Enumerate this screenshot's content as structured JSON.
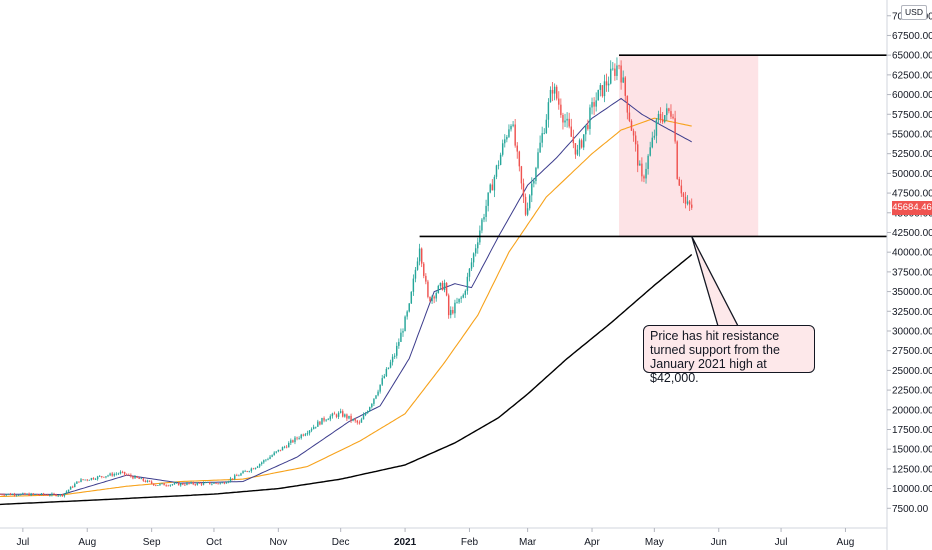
{
  "chart_data": {
    "type": "candlestick",
    "currency": "USD",
    "y_axis_ticks": [
      "7500.00",
      "10000.00",
      "12500.00",
      "15000.00",
      "17500.00",
      "20000.00",
      "22500.00",
      "25000.00",
      "27500.00",
      "30000.00",
      "32500.00",
      "35000.00",
      "37500.00",
      "40000.00",
      "42500.00",
      "45000.00",
      "47500.00",
      "50000.00",
      "52500.00",
      "55000.00",
      "57500.00",
      "60000.00",
      "62500.00",
      "65000.00",
      "67500.00",
      "70000.00"
    ],
    "y_tick_values": [
      7500,
      10000,
      12500,
      15000,
      17500,
      20000,
      22500,
      25000,
      27500,
      30000,
      32500,
      35000,
      37500,
      40000,
      42500,
      45000,
      47500,
      50000,
      52500,
      55000,
      57500,
      60000,
      62500,
      65000,
      67500,
      70000
    ],
    "ylim": [
      5000,
      72000
    ],
    "x_axis_ticks": [
      {
        "label": "Jul",
        "date": "2020-07-01",
        "bold": false
      },
      {
        "label": "Aug",
        "date": "2020-08-01",
        "bold": false
      },
      {
        "label": "Sep",
        "date": "2020-09-01",
        "bold": false
      },
      {
        "label": "Oct",
        "date": "2020-10-01",
        "bold": false
      },
      {
        "label": "Nov",
        "date": "2020-11-01",
        "bold": false
      },
      {
        "label": "Dec",
        "date": "2020-12-01",
        "bold": false
      },
      {
        "label": "2021",
        "date": "2021-01-01",
        "bold": true
      },
      {
        "label": "Feb",
        "date": "2021-02-01",
        "bold": false
      },
      {
        "label": "Mar",
        "date": "2021-03-01",
        "bold": false
      },
      {
        "label": "Apr",
        "date": "2021-04-01",
        "bold": false
      },
      {
        "label": "May",
        "date": "2021-05-01",
        "bold": false
      },
      {
        "label": "Jun",
        "date": "2021-06-01",
        "bold": false
      },
      {
        "label": "Jul",
        "date": "2021-07-01",
        "bold": false
      },
      {
        "label": "Aug",
        "date": "2021-08-01",
        "bold": false
      }
    ],
    "xlim": [
      "2020-06-20",
      "2021-08-21"
    ],
    "last_price": "45684.46",
    "price_keyframes": [
      [
        "2020-06-20",
        9300
      ],
      [
        "2020-07-20",
        9200
      ],
      [
        "2020-07-28",
        11000
      ],
      [
        "2020-08-17",
        12000
      ],
      [
        "2020-09-03",
        10500
      ],
      [
        "2020-10-05",
        10700
      ],
      [
        "2020-10-21",
        12800
      ],
      [
        "2020-11-05",
        15500
      ],
      [
        "2020-11-24",
        19000
      ],
      [
        "2020-12-01",
        19500
      ],
      [
        "2020-12-10",
        18200
      ],
      [
        "2020-12-16",
        21000
      ],
      [
        "2020-12-27",
        27000
      ],
      [
        "2021-01-03",
        33000
      ],
      [
        "2021-01-08",
        41000
      ],
      [
        "2021-01-12",
        34000
      ],
      [
        "2021-01-20",
        36000
      ],
      [
        "2021-01-22",
        32000
      ],
      [
        "2021-01-29",
        34500
      ],
      [
        "2021-02-08",
        45000
      ],
      [
        "2021-02-21",
        57000
      ],
      [
        "2021-02-28",
        45000
      ],
      [
        "2021-03-13",
        61000
      ],
      [
        "2021-03-25",
        52500
      ],
      [
        "2021-04-02",
        59000
      ],
      [
        "2021-04-14",
        64000
      ],
      [
        "2021-04-25",
        49000
      ],
      [
        "2021-05-03",
        57000
      ],
      [
        "2021-05-10",
        58000
      ],
      [
        "2021-05-12",
        50000
      ],
      [
        "2021-05-16",
        46000
      ],
      [
        "2021-05-19",
        45684
      ]
    ],
    "ma_fast_keyframes": [
      [
        "2020-06-20",
        9300
      ],
      [
        "2020-07-20",
        9250
      ],
      [
        "2020-08-20",
        11700
      ],
      [
        "2020-09-15",
        10700
      ],
      [
        "2020-10-15",
        10900
      ],
      [
        "2020-11-10",
        14000
      ],
      [
        "2020-12-05",
        18500
      ],
      [
        "2020-12-20",
        20500
      ],
      [
        "2021-01-03",
        26500
      ],
      [
        "2021-01-15",
        35000
      ],
      [
        "2021-01-25",
        36000
      ],
      [
        "2021-02-02",
        35500
      ],
      [
        "2021-02-15",
        42000
      ],
      [
        "2021-03-01",
        48500
      ],
      [
        "2021-03-15",
        52000
      ],
      [
        "2021-04-01",
        57000
      ],
      [
        "2021-04-15",
        59500
      ],
      [
        "2021-04-25",
        57500
      ],
      [
        "2021-05-05",
        56000
      ],
      [
        "2021-05-19",
        54000
      ]
    ],
    "ma_slow_keyframes": [
      [
        "2020-06-20",
        9000
      ],
      [
        "2020-07-20",
        9200
      ],
      [
        "2020-08-20",
        10300
      ],
      [
        "2020-09-15",
        10900
      ],
      [
        "2020-10-15",
        11200
      ],
      [
        "2020-11-15",
        12800
      ],
      [
        "2020-12-10",
        16000
      ],
      [
        "2021-01-01",
        19500
      ],
      [
        "2021-01-20",
        26000
      ],
      [
        "2021-02-05",
        32000
      ],
      [
        "2021-02-20",
        40000
      ],
      [
        "2021-03-10",
        47000
      ],
      [
        "2021-04-01",
        52500
      ],
      [
        "2021-04-15",
        55500
      ],
      [
        "2021-05-01",
        57000
      ],
      [
        "2021-05-19",
        56000
      ]
    ],
    "ma_200_keyframes": [
      [
        "2020-06-20",
        8000
      ],
      [
        "2020-08-01",
        8500
      ],
      [
        "2020-10-01",
        9300
      ],
      [
        "2020-11-01",
        10000
      ],
      [
        "2020-12-01",
        11200
      ],
      [
        "2021-01-01",
        13000
      ],
      [
        "2021-01-25",
        15800
      ],
      [
        "2021-02-15",
        19000
      ],
      [
        "2021-03-01",
        22000
      ],
      [
        "2021-03-20",
        26500
      ],
      [
        "2021-04-10",
        31000
      ],
      [
        "2021-05-01",
        35800
      ],
      [
        "2021-05-19",
        39700
      ]
    ],
    "horizontal_levels": [
      {
        "value": 65000,
        "from": "2021-04-14",
        "to": "2021-08-21"
      },
      {
        "value": 42000,
        "from": "2021-01-08",
        "to": "2021-08-21"
      }
    ],
    "highlight_zone": {
      "from": "2021-04-14",
      "to": "2021-06-20",
      "low": 42000,
      "high": 65000
    },
    "annotation": {
      "text": "Price has hit resistance turned support from the January 2021 high at $42,000.",
      "points_to": [
        "2021-05-19",
        42000
      ]
    },
    "colors": {
      "up": "#26a69a",
      "down": "#ef5350",
      "ma_fast": "#3c3c8c",
      "ma_slow": "#f7a21b",
      "ma_200": "#000000",
      "zone": "#fde3e6",
      "level_line": "#000000"
    }
  }
}
